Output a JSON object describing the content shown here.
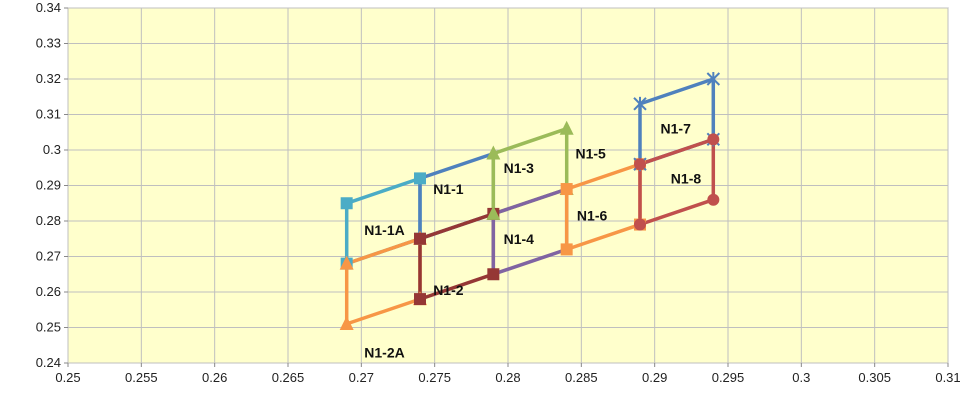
{
  "chart_data": {
    "type": "line",
    "title": "",
    "xlabel": "",
    "ylabel": "",
    "xlim": [
      0.25,
      0.31
    ],
    "ylim": [
      0.24,
      0.34
    ],
    "xticks": [
      0.25,
      0.255,
      0.26,
      0.265,
      0.27,
      0.275,
      0.28,
      0.285,
      0.29,
      0.295,
      0.3,
      0.305,
      0.31
    ],
    "xtick_labels": [
      "0.25",
      "0.255",
      "0.26",
      "0.265",
      "0.27",
      "0.275",
      "0.28",
      "0.285",
      "0.29",
      "0.295",
      "0.3",
      "0.305",
      "0.31"
    ],
    "yticks": [
      0.24,
      0.25,
      0.26,
      0.27,
      0.28,
      0.29,
      0.3,
      0.31,
      0.32,
      0.33,
      0.34
    ],
    "ytick_labels": [
      "0.24",
      "0.25",
      "0.26",
      "0.27",
      "0.28",
      "0.29",
      "0.3",
      "0.31",
      "0.32",
      "0.33",
      "0.34"
    ],
    "grid": true,
    "plot_background": "#FFFFCC",
    "grid_color": "#BFBFBF",
    "series": [
      {
        "color": "#4BACC6",
        "marker": "square",
        "x": [
          0.269,
          0.269,
          0.274,
          0.274,
          0.269
        ],
        "y": [
          0.268,
          0.285,
          0.292,
          0.275,
          0.268
        ]
      },
      {
        "color": "#F79646",
        "marker": "triangle",
        "x": [
          0.269,
          0.269,
          0.274,
          0.274,
          0.269
        ],
        "y": [
          0.251,
          0.268,
          0.275,
          0.258,
          0.251
        ]
      },
      {
        "color": "#4F81BD",
        "marker": "none",
        "x": [
          0.274,
          0.274,
          0.279,
          0.279,
          0.274
        ],
        "y": [
          0.275,
          0.292,
          0.299,
          0.282,
          0.275
        ]
      },
      {
        "color": "#953735",
        "marker": "square",
        "x": [
          0.274,
          0.274,
          0.279,
          0.279,
          0.274
        ],
        "y": [
          0.258,
          0.275,
          0.282,
          0.265,
          0.258
        ]
      },
      {
        "color": "#9BBB59",
        "marker": "triangle",
        "x": [
          0.279,
          0.279,
          0.284,
          0.284,
          0.279
        ],
        "y": [
          0.282,
          0.299,
          0.306,
          0.289,
          0.282
        ]
      },
      {
        "color": "#8064A2",
        "marker": "none",
        "x": [
          0.279,
          0.279,
          0.284,
          0.284,
          0.279
        ],
        "y": [
          0.265,
          0.282,
          0.289,
          0.272,
          0.265
        ]
      },
      {
        "color": "#F79646",
        "marker": "square",
        "x": [
          0.284,
          0.284,
          0.289,
          0.289,
          0.284
        ],
        "y": [
          0.272,
          0.289,
          0.296,
          0.279,
          0.272
        ]
      },
      {
        "color": "#4F81BD",
        "marker": "x",
        "x": [
          0.289,
          0.289,
          0.294,
          0.294,
          0.289
        ],
        "y": [
          0.296,
          0.313,
          0.32,
          0.303,
          0.296
        ]
      },
      {
        "color": "#C0504D",
        "marker": "circle",
        "x": [
          0.289,
          0.289,
          0.294,
          0.294,
          0.289
        ],
        "y": [
          0.279,
          0.296,
          0.303,
          0.286,
          0.279
        ]
      }
    ],
    "annotations": [
      {
        "text": "N1-1A",
        "x": 0.2702,
        "y": 0.2775
      },
      {
        "text": "N1-1",
        "x": 0.2749,
        "y": 0.289
      },
      {
        "text": "N1-2",
        "x": 0.2749,
        "y": 0.2605
      },
      {
        "text": "N1-2A",
        "x": 0.2702,
        "y": 0.243
      },
      {
        "text": "N1-3",
        "x": 0.2797,
        "y": 0.295
      },
      {
        "text": "N1-4",
        "x": 0.2797,
        "y": 0.275
      },
      {
        "text": "N1-5",
        "x": 0.2846,
        "y": 0.299
      },
      {
        "text": "N1-6",
        "x": 0.2847,
        "y": 0.2815
      },
      {
        "text": "N1-7",
        "x": 0.2904,
        "y": 0.306
      },
      {
        "text": "N1-8",
        "x": 0.2911,
        "y": 0.292
      }
    ]
  }
}
